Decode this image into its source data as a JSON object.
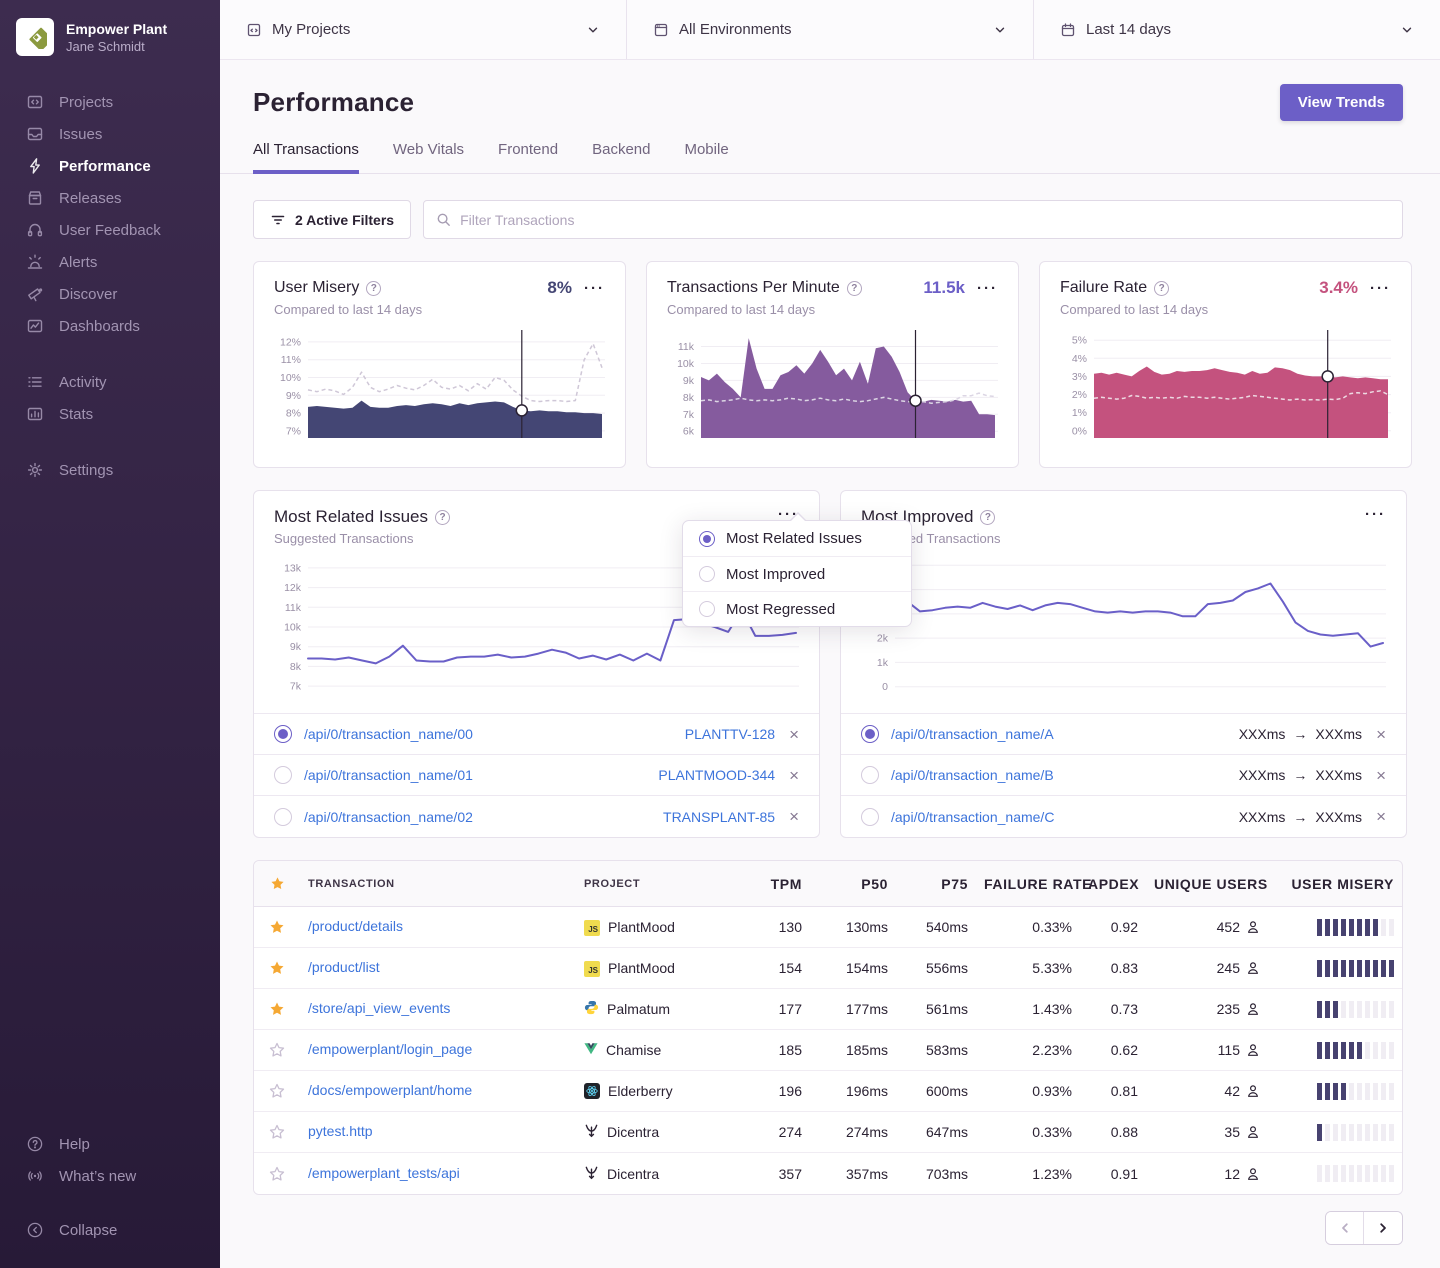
{
  "org": {
    "name": "Empower Plant",
    "user": "Jane Schmidt"
  },
  "sidebar": {
    "primary": [
      {
        "label": "Projects"
      },
      {
        "label": "Issues"
      },
      {
        "label": "Performance"
      },
      {
        "label": "Releases"
      },
      {
        "label": "User Feedback"
      },
      {
        "label": "Alerts"
      },
      {
        "label": "Discover"
      },
      {
        "label": "Dashboards"
      }
    ],
    "secondary": [
      {
        "label": "Activity"
      },
      {
        "label": "Stats"
      }
    ],
    "settings": "Settings",
    "footer": [
      {
        "label": "Help"
      },
      {
        "label": "What’s new"
      },
      {
        "label": "Collapse"
      }
    ]
  },
  "topbar": {
    "projects": "My Projects",
    "environments": "All Environments",
    "dates": "Last 14 days"
  },
  "header": {
    "title": "Performance",
    "view_trends_label": "View Trends"
  },
  "tabs": [
    "All Transactions",
    "Web Vitals",
    "Frontend",
    "Backend",
    "Mobile"
  ],
  "filters": {
    "active_label": "2 Active Filters",
    "placeholder": "Filter Transactions"
  },
  "icons": {
    "options": "···",
    "close": "×",
    "arrow": "→",
    "question": "?"
  },
  "metrics": [
    {
      "title": "User Misery",
      "subtitle": "Compared to last 14 days",
      "value": "8%",
      "value_color": "#444674"
    },
    {
      "title": "Transactions Per Minute",
      "subtitle": "Compared to last 14 days",
      "value": "11.5k",
      "value_color": "#6C5FC7"
    },
    {
      "title": "Failure Rate",
      "subtitle": "Compared to last 14 days",
      "value": "3.4%",
      "value_color": "#C4527E"
    }
  ],
  "widgets": {
    "related": {
      "title": "Most Related Issues",
      "subtitle": "Suggested Transactions",
      "rows": [
        {
          "transaction": "/api/0/transaction_name/00",
          "issue": "PLANTTV-128",
          "selected": true
        },
        {
          "transaction": "/api/0/transaction_name/01",
          "issue": "PLANTMOOD-344",
          "selected": false
        },
        {
          "transaction": "/api/0/transaction_name/02",
          "issue": "TRANSPLANT-85",
          "selected": false
        }
      ]
    },
    "improved": {
      "title": "Most Improved",
      "subtitle": "Suggested Transactions",
      "rows": [
        {
          "transaction": "/api/0/transaction_name/A",
          "before": "XXXms",
          "after": "XXXms",
          "selected": true
        },
        {
          "transaction": "/api/0/transaction_name/B",
          "before": "XXXms",
          "after": "XXXms",
          "selected": false
        },
        {
          "transaction": "/api/0/transaction_name/C",
          "before": "XXXms",
          "after": "XXXms",
          "selected": false
        }
      ]
    }
  },
  "dropdown": {
    "items": [
      {
        "label": "Most Related Issues",
        "selected": true
      },
      {
        "label": "Most Improved",
        "selected": false
      },
      {
        "label": "Most Regressed",
        "selected": false
      }
    ]
  },
  "table": {
    "columns": [
      "TRANSACTION",
      "PROJECT",
      "TPM",
      "P50",
      "P75",
      "FAILURE RATE",
      "APDEX",
      "UNIQUE USERS",
      "USER MISERY"
    ],
    "rows": [
      {
        "starred": true,
        "transaction": "/product/details",
        "project": "PlantMood",
        "platform": "js",
        "tpm": "130",
        "p50": "130ms",
        "p75": "540ms",
        "failure_rate": "0.33%",
        "apdex": "0.92",
        "users": "452",
        "misery": 8
      },
      {
        "starred": true,
        "transaction": "/product/list",
        "project": "PlantMood",
        "platform": "js",
        "tpm": "154",
        "p50": "154ms",
        "p75": "556ms",
        "failure_rate": "5.33%",
        "apdex": "0.83",
        "users": "245",
        "misery": 10
      },
      {
        "starred": true,
        "transaction": "/store/api_view_events",
        "project": "Palmatum",
        "platform": "python",
        "tpm": "177",
        "p50": "177ms",
        "p75": "561ms",
        "failure_rate": "1.43%",
        "apdex": "0.73",
        "users": "235",
        "misery": 3
      },
      {
        "starred": false,
        "transaction": "/empowerplant/login_page",
        "project": "Chamise",
        "platform": "vue",
        "tpm": "185",
        "p50": "185ms",
        "p75": "583ms",
        "failure_rate": "2.23%",
        "apdex": "0.62",
        "users": "115",
        "misery": 6
      },
      {
        "starred": false,
        "transaction": "/docs/empowerplant/home",
        "project": "Elderberry",
        "platform": "react",
        "tpm": "196",
        "p50": "196ms",
        "p75": "600ms",
        "failure_rate": "0.93%",
        "apdex": "0.81",
        "users": "42",
        "misery": 4
      },
      {
        "starred": false,
        "transaction": "pytest.http",
        "project": "Dicentra",
        "platform": "dicentra",
        "tpm": "274",
        "p50": "274ms",
        "p75": "647ms",
        "failure_rate": "0.33%",
        "apdex": "0.88",
        "users": "35",
        "misery": 1
      },
      {
        "starred": false,
        "transaction": "/empowerplant_tests/api",
        "project": "Dicentra",
        "platform": "dicentra",
        "tpm": "357",
        "p50": "357ms",
        "p75": "703ms",
        "failure_rate": "1.23%",
        "apdex": "0.91",
        "users": "12",
        "misery": 0
      }
    ]
  },
  "chart_data": [
    {
      "id": "misery",
      "type": "area",
      "title": "User Misery",
      "ylim": [
        6.6,
        12.5
      ],
      "yticks": [
        {
          "v": 12,
          "label": "12%"
        },
        {
          "v": 11,
          "label": "11%"
        },
        {
          "v": 10,
          "label": "10%"
        },
        {
          "v": 9,
          "label": "9%"
        },
        {
          "v": 8,
          "label": "8%"
        },
        {
          "v": 7,
          "label": "7%"
        }
      ],
      "color": "#444674",
      "prev_color": "#CFC7D7",
      "values": [
        8.35,
        8.4,
        8.35,
        8.3,
        8.25,
        8.3,
        8.7,
        8.35,
        8.3,
        8.3,
        8.4,
        8.45,
        8.4,
        8.5,
        8.55,
        8.5,
        8.4,
        8.55,
        8.45,
        8.55,
        8.6,
        8.65,
        8.6,
        8.35,
        8.15,
        8.1,
        8.15,
        8.1,
        8.1,
        8.05,
        8.05,
        8.0,
        8.0,
        7.95
      ],
      "previous": [
        9.3,
        9.2,
        9.35,
        9.25,
        9.05,
        9.45,
        10.3,
        9.45,
        9.2,
        9.35,
        9.55,
        9.4,
        9.3,
        9.55,
        9.9,
        9.45,
        9.35,
        9.55,
        9.25,
        9.65,
        9.35,
        10.0,
        9.85,
        9.3,
        8.95,
        8.7,
        8.65,
        8.7,
        8.7,
        8.65,
        8.7,
        11.0,
        11.9,
        10.55
      ],
      "crosshair": {
        "frac": 0.73
      }
    },
    {
      "id": "tpm",
      "type": "area",
      "title": "Transactions Per Minute",
      "ylim": [
        5.6,
        11.8
      ],
      "yticks": [
        {
          "v": 11,
          "label": "11k"
        },
        {
          "v": 10,
          "label": "10k"
        },
        {
          "v": 9,
          "label": "9k"
        },
        {
          "v": 8,
          "label": "8k"
        },
        {
          "v": 7,
          "label": "7k"
        },
        {
          "v": 6,
          "label": "6k"
        }
      ],
      "color": "#855B9E",
      "prev_color": "#DCD6E4",
      "values": [
        9.2,
        9.0,
        9.4,
        8.9,
        8.5,
        8.0,
        11.5,
        9.7,
        8.5,
        8.5,
        9.3,
        9.5,
        9.9,
        9.4,
        10.0,
        10.8,
        10.1,
        9.3,
        9.7,
        9.0,
        10.1,
        8.8,
        10.9,
        11.0,
        10.4,
        9.5,
        8.3,
        7.8,
        7.75,
        7.85,
        7.8,
        7.75,
        7.85,
        7.75,
        7.8,
        7.0,
        7.0,
        6.95
      ],
      "previous": [
        7.8,
        7.85,
        7.75,
        7.8,
        7.85,
        7.95,
        7.85,
        7.8,
        7.85,
        7.8,
        7.85,
        7.95,
        7.9,
        7.8,
        7.85,
        7.95,
        7.85,
        7.8,
        7.9,
        7.8,
        7.75,
        7.8,
        7.9,
        8.0,
        7.9,
        7.8,
        7.75,
        7.7,
        7.75,
        7.65,
        7.7,
        7.75,
        7.85,
        8.1,
        8.1,
        8.25,
        8.1,
        8.05
      ],
      "crosshair": {
        "frac": 0.73
      }
    },
    {
      "id": "failure",
      "type": "area",
      "title": "Failure Rate",
      "ylim": [
        -0.4,
        5.4
      ],
      "yticks": [
        {
          "v": 5,
          "label": "5%"
        },
        {
          "v": 4,
          "label": "4%"
        },
        {
          "v": 3,
          "label": "3%"
        },
        {
          "v": 2,
          "label": "2%"
        },
        {
          "v": 1,
          "label": "1%"
        },
        {
          "v": 0,
          "label": "0%"
        }
      ],
      "color": "#C4527E",
      "prev_color": "#EDD9E2",
      "values": [
        3.15,
        3.2,
        3.1,
        3.2,
        3.1,
        3.0,
        3.3,
        3.55,
        3.25,
        3.1,
        3.15,
        3.3,
        3.25,
        3.3,
        3.3,
        3.35,
        3.45,
        3.35,
        3.25,
        3.2,
        3.1,
        3.3,
        3.15,
        3.2,
        3.5,
        3.45,
        3.35,
        3.15,
        3.05,
        3.0,
        3.0,
        3.0,
        2.95,
        3.0,
        2.95,
        2.9,
        2.95,
        2.9,
        2.85,
        2.85
      ],
      "previous": [
        1.8,
        1.85,
        1.8,
        1.75,
        1.8,
        1.95,
        1.9,
        1.8,
        1.85,
        1.8,
        1.85,
        1.8,
        1.9,
        1.85,
        1.85,
        1.8,
        1.85,
        1.8,
        1.75,
        1.8,
        1.85,
        1.95,
        1.9,
        1.85,
        1.8,
        1.75,
        1.7,
        1.75,
        1.7,
        1.72,
        1.7,
        1.75,
        1.72,
        1.8,
        2.05,
        2.1,
        2.05,
        2.15,
        2.2,
        2.0
      ],
      "crosshair": {
        "frac": 0.79
      }
    },
    {
      "id": "related",
      "type": "line",
      "title": "Most Related Issues",
      "ylim": [
        6.6,
        13.5
      ],
      "yticks": [
        {
          "v": 13,
          "label": "13k"
        },
        {
          "v": 12,
          "label": "12k"
        },
        {
          "v": 11,
          "label": "11k"
        },
        {
          "v": 10,
          "label": "10k"
        },
        {
          "v": 9,
          "label": "9k"
        },
        {
          "v": 8,
          "label": "8k"
        },
        {
          "v": 7,
          "label": "7k"
        }
      ],
      "color": "#6A5FC8",
      "values": [
        8.4,
        8.4,
        8.35,
        8.45,
        8.3,
        8.15,
        8.5,
        9.05,
        8.3,
        8.25,
        8.25,
        8.45,
        8.5,
        8.5,
        8.6,
        8.45,
        8.5,
        8.65,
        8.85,
        8.7,
        8.4,
        8.55,
        8.35,
        8.6,
        8.3,
        8.65,
        8.3,
        10.35,
        10.4,
        10.2,
        10.0,
        9.75,
        10.85,
        9.55,
        9.55,
        9.6,
        9.7
      ]
    },
    {
      "id": "improved",
      "type": "line",
      "title": "Most Improved",
      "ylim": [
        -0.3,
        5.3
      ],
      "yticks": [
        {
          "v": 5,
          "label": "5k"
        },
        {
          "v": 4,
          "label": "4k"
        },
        {
          "v": 3,
          "label": "3k"
        },
        {
          "v": 2,
          "label": "2k"
        },
        {
          "v": 1,
          "label": "1k"
        },
        {
          "v": 0,
          "label": "0"
        }
      ],
      "color": "#6A5FC8",
      "values": [
        3.0,
        3.5,
        3.1,
        3.15,
        3.25,
        3.3,
        3.25,
        3.45,
        3.3,
        3.2,
        3.35,
        3.15,
        3.35,
        3.45,
        3.4,
        3.25,
        3.1,
        3.05,
        3.1,
        3.05,
        3.1,
        3.1,
        3.05,
        2.9,
        2.9,
        3.4,
        3.45,
        3.55,
        3.9,
        4.05,
        4.25,
        3.5,
        2.65,
        2.3,
        2.15,
        2.1,
        2.15,
        2.2,
        1.65,
        1.8
      ]
    }
  ]
}
